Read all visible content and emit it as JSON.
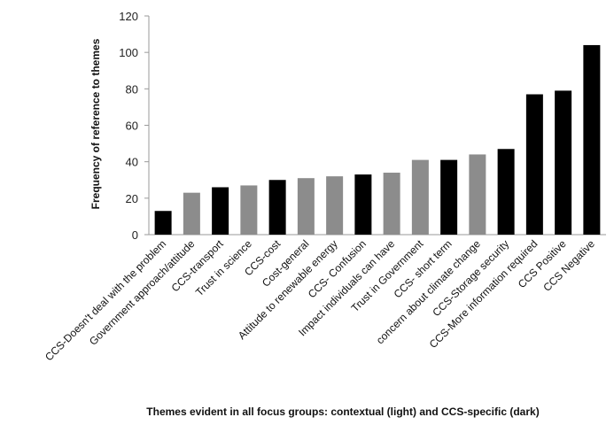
{
  "chart_data": {
    "type": "bar",
    "title": "",
    "xlabel": "Themes evident in all focus groups: contextual (light) and CCS-specific (dark)",
    "ylabel": "Frequency of reference to themes",
    "ylim": [
      0,
      120
    ],
    "yticks": [
      0,
      20,
      40,
      60,
      80,
      100,
      120
    ],
    "grid": false,
    "legend": "none",
    "categories": [
      "CCS-Doesn't deal with the problem",
      "Government approach/attitude",
      "CCS-transport",
      "Trust in science",
      "CCS-cost",
      "Cost-general",
      "Attitude to renewable energy",
      "CCS- Confusion",
      "Impact individuals can have",
      "Trust in Government",
      "CCS- short term",
      "concern about climate change",
      "CCS-Storage security",
      "CCS-More information required",
      "CCS Positive",
      "CCS Negative"
    ],
    "values": [
      13,
      23,
      26,
      27,
      30,
      31,
      32,
      33,
      34,
      41,
      41,
      44,
      47,
      77,
      79,
      104
    ],
    "bar_types": [
      "ccs",
      "contextual",
      "ccs",
      "contextual",
      "ccs",
      "contextual",
      "contextual",
      "ccs",
      "contextual",
      "contextual",
      "ccs",
      "contextual",
      "ccs",
      "ccs",
      "ccs",
      "ccs"
    ],
    "colors": {
      "ccs": "#000000",
      "contextual": "#8c8c8c",
      "axis": "#9a9a9a"
    }
  }
}
